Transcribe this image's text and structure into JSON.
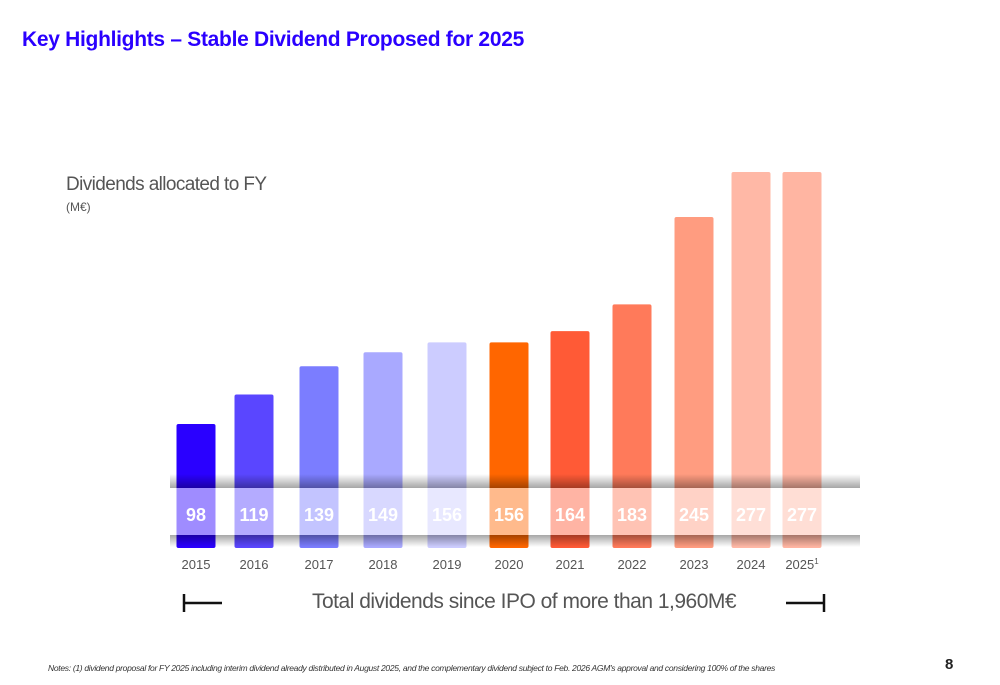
{
  "header": {
    "title": "Key Highlights – Stable Dividend Proposed for 2025"
  },
  "chart_data": {
    "type": "bar",
    "title": "Dividends allocated to FY",
    "unit": "(M€)",
    "categories": [
      "2015",
      "2016",
      "2017",
      "2018",
      "2019",
      "2020",
      "2021",
      "2022",
      "2023",
      "2024",
      "2025"
    ],
    "category_superscripts": {
      "2025": "1"
    },
    "values": [
      98,
      119,
      139,
      149,
      156,
      156,
      164,
      183,
      245,
      277,
      277
    ],
    "colors": [
      "#2a00ff",
      "#5a46ff",
      "#7b7dff",
      "#a9a9ff",
      "#ccccff",
      "#ff6600",
      "#ff5a36",
      "#ff7a5a",
      "#ff9c80",
      "#ffb8a6",
      "#ffb5a2"
    ],
    "data_labels": true,
    "grid": false
  },
  "total_text": "Total dividends since IPO of more than 1,960M€",
  "notes": "Notes: (1) dividend proposal for FY 2025 including interim dividend already distributed in August 2025, and the complementary dividend subject to Feb. 2026 AGM's approval and considering 100% of the shares",
  "page_number": "8"
}
